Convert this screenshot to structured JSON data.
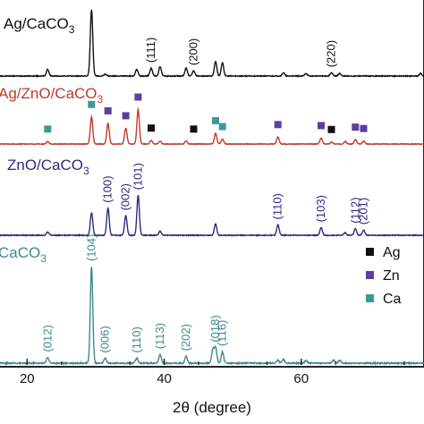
{
  "chart_data": {
    "type": "line",
    "title": "",
    "xlabel": "2θ (degree)",
    "ylabel": "",
    "xlim": [
      15,
      80
    ],
    "xticks": [
      20,
      40,
      60
    ],
    "grid": false,
    "legend_placement": "right",
    "series": [
      {
        "name": "Ag/CaCO3",
        "color": "#111111",
        "peaks": [
          {
            "x": 23.0,
            "h": 0.1
          },
          {
            "x": 29.4,
            "h": 1.0
          },
          {
            "x": 31.4,
            "h": 0.03
          },
          {
            "x": 36.0,
            "h": 0.1
          },
          {
            "x": 38.1,
            "h": 0.12
          },
          {
            "x": 39.4,
            "h": 0.14
          },
          {
            "x": 43.2,
            "h": 0.12
          },
          {
            "x": 44.3,
            "h": 0.08
          },
          {
            "x": 47.5,
            "h": 0.22
          },
          {
            "x": 48.5,
            "h": 0.2
          },
          {
            "x": 57.4,
            "h": 0.05
          },
          {
            "x": 60.7,
            "h": 0.04
          },
          {
            "x": 64.4,
            "h": 0.05
          },
          {
            "x": 65.6,
            "h": 0.04
          },
          {
            "x": 77.4,
            "h": 0.04
          }
        ],
        "annotations": [
          {
            "label": "(111)",
            "x": 38.1
          },
          {
            "label": "(200)",
            "x": 44.3
          },
          {
            "label": "(220)",
            "x": 64.4
          }
        ]
      },
      {
        "name": "Ag/ZnO/CaCO3",
        "color": "#c0392b",
        "peaks": [
          {
            "x": 23.0,
            "h": 0.05
          },
          {
            "x": 29.4,
            "h": 0.55
          },
          {
            "x": 31.8,
            "h": 0.42
          },
          {
            "x": 34.4,
            "h": 0.32
          },
          {
            "x": 36.2,
            "h": 0.7
          },
          {
            "x": 38.1,
            "h": 0.07
          },
          {
            "x": 39.4,
            "h": 0.06
          },
          {
            "x": 43.2,
            "h": 0.06
          },
          {
            "x": 47.5,
            "h": 0.22
          },
          {
            "x": 48.5,
            "h": 0.1
          },
          {
            "x": 56.6,
            "h": 0.14
          },
          {
            "x": 62.9,
            "h": 0.12
          },
          {
            "x": 64.4,
            "h": 0.04
          },
          {
            "x": 66.4,
            "h": 0.05
          },
          {
            "x": 67.9,
            "h": 0.09
          },
          {
            "x": 69.1,
            "h": 0.06
          }
        ],
        "markers": [
          {
            "type": "CaCO3",
            "x": 23.0
          },
          {
            "type": "CaCO3",
            "x": 29.4
          },
          {
            "type": "ZnO",
            "x": 31.8
          },
          {
            "type": "ZnO",
            "x": 34.4
          },
          {
            "type": "ZnO",
            "x": 36.2
          },
          {
            "type": "Ag",
            "x": 38.1
          },
          {
            "type": "Ag",
            "x": 44.3
          },
          {
            "type": "CaCO3",
            "x": 47.5
          },
          {
            "type": "CaCO3",
            "x": 48.5
          },
          {
            "type": "ZnO",
            "x": 56.6
          },
          {
            "type": "ZnO",
            "x": 62.9
          },
          {
            "type": "Ag",
            "x": 64.4
          },
          {
            "type": "ZnO",
            "x": 67.9
          },
          {
            "type": "ZnO",
            "x": 69.1
          }
        ]
      },
      {
        "name": "ZnO/CaCO3",
        "color": "#2e2a80",
        "peaks": [
          {
            "x": 23.0,
            "h": 0.05
          },
          {
            "x": 29.4,
            "h": 0.35
          },
          {
            "x": 31.8,
            "h": 0.42
          },
          {
            "x": 34.4,
            "h": 0.3
          },
          {
            "x": 36.2,
            "h": 0.62
          },
          {
            "x": 39.4,
            "h": 0.06
          },
          {
            "x": 47.5,
            "h": 0.18
          },
          {
            "x": 56.6,
            "h": 0.16
          },
          {
            "x": 62.9,
            "h": 0.12
          },
          {
            "x": 66.4,
            "h": 0.04
          },
          {
            "x": 67.9,
            "h": 0.1
          },
          {
            "x": 69.1,
            "h": 0.08
          }
        ],
        "annotations": [
          {
            "label": "(100)",
            "x": 31.8
          },
          {
            "label": "(002)",
            "x": 34.4
          },
          {
            "label": "(101)",
            "x": 36.2
          },
          {
            "label": "(110)",
            "x": 56.6
          },
          {
            "label": "(103)",
            "x": 62.9
          },
          {
            "label": "(112)",
            "x": 67.9
          },
          {
            "label": "(201)",
            "x": 69.1
          }
        ]
      },
      {
        "name": "CaCO3",
        "color": "#3d8a8c",
        "peaks": [
          {
            "x": 23.0,
            "h": 0.06
          },
          {
            "x": 29.4,
            "h": 1.0
          },
          {
            "x": 31.4,
            "h": 0.05
          },
          {
            "x": 36.0,
            "h": 0.05
          },
          {
            "x": 39.4,
            "h": 0.09
          },
          {
            "x": 43.2,
            "h": 0.07
          },
          {
            "x": 47.1,
            "h": 0.14
          },
          {
            "x": 47.5,
            "h": 0.16
          },
          {
            "x": 48.5,
            "h": 0.12
          },
          {
            "x": 56.6,
            "h": 0.03
          },
          {
            "x": 57.4,
            "h": 0.04
          },
          {
            "x": 60.7,
            "h": 0.03
          },
          {
            "x": 64.7,
            "h": 0.03
          },
          {
            "x": 65.6,
            "h": 0.03
          }
        ],
        "annotations": [
          {
            "label": "(012)",
            "x": 23.0
          },
          {
            "label": "(104)",
            "x": 29.4
          },
          {
            "label": "(006)",
            "x": 31.4
          },
          {
            "label": "(110)",
            "x": 36.0
          },
          {
            "label": "(113)",
            "x": 39.4
          },
          {
            "label": "(202)",
            "x": 43.2
          },
          {
            "label": "(018)",
            "x": 47.5
          },
          {
            "label": "(116)",
            "x": 48.5
          }
        ]
      }
    ],
    "legend": [
      {
        "type": "Ag",
        "label": "Ag",
        "color": "#111111"
      },
      {
        "type": "ZnO",
        "label": "Zn",
        "color": "#5a3fa0"
      },
      {
        "type": "CaCO3",
        "label": "Ca",
        "color": "#3d9a95"
      }
    ]
  }
}
